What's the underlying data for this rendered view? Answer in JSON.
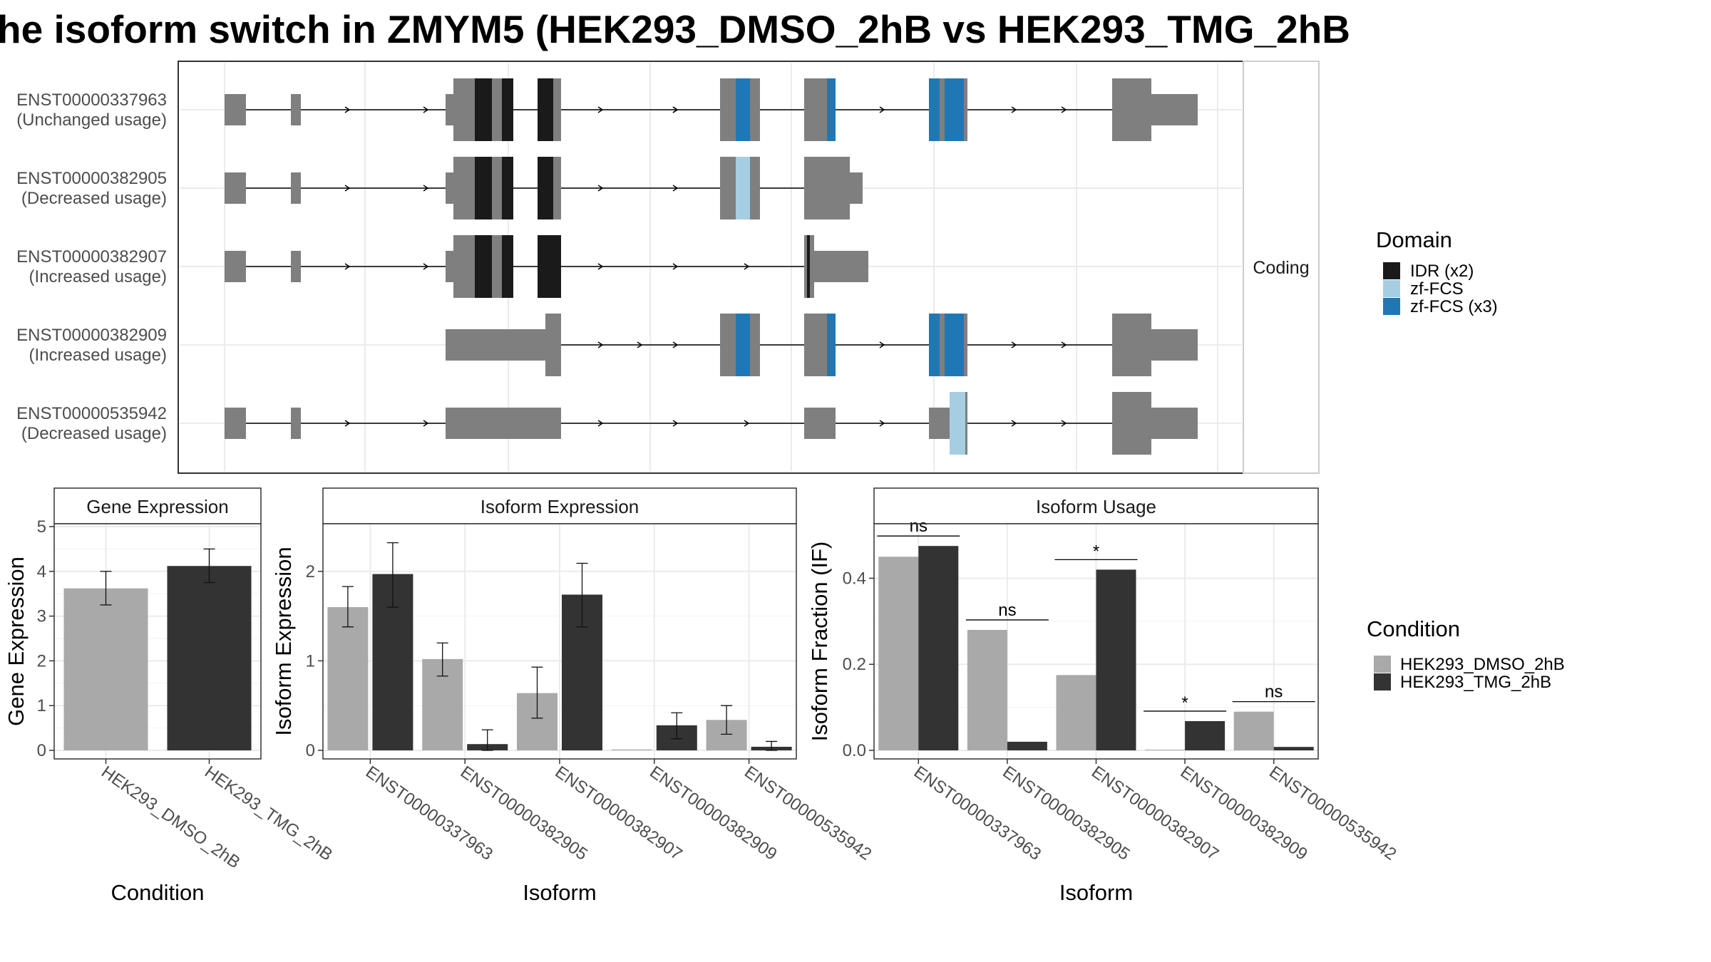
{
  "title": "he isoform switch in ZMYM5 (HEK293_DMSO_2hB vs HEK293_TMG_2hB",
  "structure_panel": {
    "strip_label": "Coding",
    "transcripts": [
      {
        "id": "ENST00000337963",
        "usage": "(Unchanged usage)"
      },
      {
        "id": "ENST00000382905",
        "usage": "(Decreased usage)"
      },
      {
        "id": "ENST00000382907",
        "usage": "(Increased usage)"
      },
      {
        "id": "ENST00000382909",
        "usage": "(Increased usage)"
      },
      {
        "id": "ENST00000535942",
        "usage": "(Decreased usage)"
      }
    ]
  },
  "domain_legend": {
    "title": "Domain",
    "items": [
      {
        "label": "IDR (x2)",
        "color": "#1a1a1a"
      },
      {
        "label": "zf-FCS",
        "color": "#a6cee3"
      },
      {
        "label": "zf-FCS (x3)",
        "color": "#1f78b4"
      }
    ]
  },
  "condition_legend": {
    "title": "Condition",
    "items": [
      {
        "label": "HEK293_DMSO_2hB",
        "color": "#a9a9a9"
      },
      {
        "label": "HEK293_TMG_2hB",
        "color": "#333333"
      }
    ]
  },
  "chart_data": [
    {
      "type": "bar",
      "title": "Gene Expression",
      "xlabel": "Condition",
      "ylabel": "Gene Expression",
      "ylim": [
        0,
        5
      ],
      "yticks": [
        0,
        1,
        2,
        3,
        4,
        5
      ],
      "categories": [
        "HEK293_DMSO_2hB",
        "HEK293_TMG_2hB"
      ],
      "values": [
        3.62,
        4.12
      ],
      "errors": [
        [
          3.25,
          4.0
        ],
        [
          3.75,
          4.5
        ]
      ]
    },
    {
      "type": "bar",
      "title": "Isoform Expression",
      "xlabel": "Isoform",
      "ylabel": "Isoform Expression",
      "ylim": [
        0,
        2.5
      ],
      "yticks": [
        0,
        1,
        2
      ],
      "categories": [
        "ENST00000337963",
        "ENST00000382905",
        "ENST00000382907",
        "ENST00000382909",
        "ENST00000535942"
      ],
      "series": [
        {
          "name": "HEK293_DMSO_2hB",
          "values": [
            1.6,
            1.02,
            0.64,
            0.01,
            0.34
          ],
          "errors": [
            [
              1.38,
              1.83
            ],
            [
              0.83,
              1.2
            ],
            [
              0.36,
              0.93
            ],
            [
              null,
              null
            ],
            [
              0.18,
              0.5
            ]
          ]
        },
        {
          "name": "HEK293_TMG_2hB",
          "values": [
            1.97,
            0.07,
            1.74,
            0.28,
            0.04
          ],
          "errors": [
            [
              1.6,
              2.32
            ],
            [
              0.0,
              0.23
            ],
            [
              1.38,
              2.09
            ],
            [
              0.13,
              0.42
            ],
            [
              0.0,
              0.1
            ]
          ]
        }
      ]
    },
    {
      "type": "bar",
      "title": "Isoform Usage",
      "xlabel": "Isoform",
      "ylabel": "Isoform Fraction (IF)",
      "ylim": [
        0,
        0.52
      ],
      "yticks": [
        "0.0",
        "0.2",
        "0.4"
      ],
      "categories": [
        "ENST00000337963",
        "ENST00000382905",
        "ENST00000382907",
        "ENST00000382909",
        "ENST00000535942"
      ],
      "series": [
        {
          "name": "HEK293_DMSO_2hB",
          "values": [
            0.45,
            0.28,
            0.175,
            0.0,
            0.09
          ]
        },
        {
          "name": "HEK293_TMG_2hB",
          "values": [
            0.475,
            0.02,
            0.42,
            0.068,
            0.008
          ]
        }
      ],
      "significance": [
        "ns",
        "ns",
        "*",
        "*",
        "ns"
      ]
    }
  ]
}
